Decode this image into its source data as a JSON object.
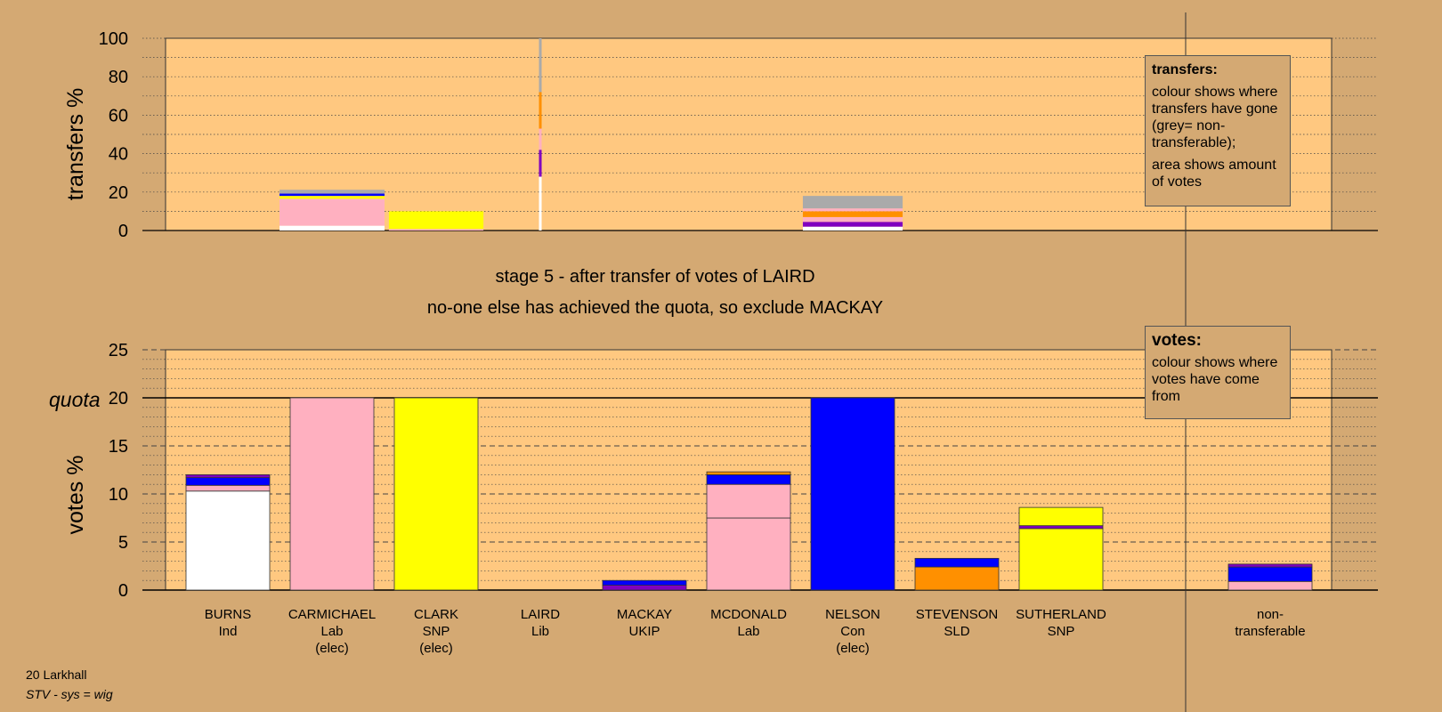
{
  "footer": {
    "ward": "20 Larkhall",
    "system": "STV - sys = wig"
  },
  "stage": {
    "line1": "stage 5 - after transfer of votes of LAIRD",
    "line2": "no-one else has achieved the quota, so exclude MACKAY"
  },
  "legends": {
    "transfers": {
      "title": "transfers:",
      "p1": "colour shows where transfers have gone (grey= non-transferable);",
      "p2": "area shows amount of votes"
    },
    "votes": {
      "title": "votes:",
      "p1": "colour shows where votes have come from"
    }
  },
  "colors": {
    "background": "#d4a973",
    "plot_bg": "#ffc880",
    "Ind": "#ffffff",
    "Lab": "#ffb0c0",
    "SNP": "#ffff00",
    "Lib": "#ff9000",
    "UKIP": "#8000c0",
    "Con": "#0000ff",
    "SLD": "#ff9000",
    "nontransferable": "#aaaaaa"
  },
  "chart_data": [
    {
      "type": "bar",
      "stacked": true,
      "ylabel": "transfers %",
      "ylim": [
        0,
        100
      ],
      "yticks": [
        0,
        20,
        40,
        60,
        80,
        100
      ],
      "categories": [
        "BURNS",
        "CARMICHAEL",
        "CLARK",
        "LAIRD",
        "MACKAY",
        "MCDONALD",
        "NELSON",
        "STEVENSON",
        "SUTHERLAND"
      ],
      "bars": [
        {
          "category": "CARMICHAEL",
          "width_rel": 1.0,
          "segments": [
            {
              "party": "Ind",
              "value": 2.5
            },
            {
              "party": "Lab",
              "value": 14
            },
            {
              "party": "SNP",
              "value": 1.5
            },
            {
              "party": "Con",
              "value": 1.2
            },
            {
              "party": "nontransferable",
              "value": 2
            }
          ]
        },
        {
          "category": "CLARK",
          "width_rel": 0.9,
          "segments": [
            {
              "party": "Lab",
              "value": 0.8
            },
            {
              "party": "SNP",
              "value": 9.2
            }
          ]
        },
        {
          "category": "LAIRD",
          "width_rel": 0.02,
          "segments": [
            {
              "party": "Ind",
              "value": 28
            },
            {
              "party": "UKIP",
              "value": 14
            },
            {
              "party": "Lab",
              "value": 11
            },
            {
              "party": "SLD",
              "value": 19
            },
            {
              "party": "nontransferable",
              "value": 28
            }
          ]
        },
        {
          "category": "NELSON",
          "width_rel": 0.95,
          "segments": [
            {
              "party": "Ind",
              "value": 2
            },
            {
              "party": "UKIP",
              "value": 2.5
            },
            {
              "party": "Lab",
              "value": 2.5
            },
            {
              "party": "SLD",
              "value": 3
            },
            {
              "party": "Lab",
              "value": 1.5
            },
            {
              "party": "nontransferable",
              "value": 6.5
            }
          ]
        }
      ]
    },
    {
      "type": "bar",
      "stacked": true,
      "ylabel": "votes %",
      "ylim": [
        0,
        25
      ],
      "yticks": [
        0,
        5,
        10,
        15,
        20,
        25
      ],
      "quota": 20,
      "quota_label": "quota",
      "candidates": [
        {
          "name": "BURNS",
          "party": "Ind",
          "note": "",
          "segments": [
            {
              "party": "Ind",
              "value": 10.3
            },
            {
              "party": "Lab",
              "value": 0.6
            },
            {
              "party": "Con",
              "value": 0.8
            },
            {
              "party": "UKIP",
              "value": 0.3
            }
          ]
        },
        {
          "name": "CARMICHAEL",
          "party": "Lab",
          "note": "(elec)",
          "segments": [
            {
              "party": "Lab",
              "value": 20
            }
          ]
        },
        {
          "name": "CLARK",
          "party": "SNP",
          "note": "(elec)",
          "segments": [
            {
              "party": "SNP",
              "value": 20
            }
          ]
        },
        {
          "name": "LAIRD",
          "party": "Lib",
          "note": "",
          "segments": []
        },
        {
          "name": "MACKAY",
          "party": "UKIP",
          "note": "",
          "segments": [
            {
              "party": "UKIP",
              "value": 0.5
            },
            {
              "party": "Con",
              "value": 0.5
            }
          ]
        },
        {
          "name": "MCDONALD",
          "party": "Lab",
          "note": "",
          "segments": [
            {
              "party": "Lab",
              "value": 7.5
            },
            {
              "party": "Lab",
              "value": 3.5
            },
            {
              "party": "Con",
              "value": 1.0
            },
            {
              "party": "SLD",
              "value": 0.3
            }
          ]
        },
        {
          "name": "NELSON",
          "party": "Con",
          "note": "(elec)",
          "segments": [
            {
              "party": "Con",
              "value": 20
            }
          ]
        },
        {
          "name": "STEVENSON",
          "party": "SLD",
          "note": "",
          "segments": [
            {
              "party": "SLD",
              "value": 2.4
            },
            {
              "party": "Con",
              "value": 0.9
            }
          ]
        },
        {
          "name": "SUTHERLAND",
          "party": "SNP",
          "note": "",
          "segments": [
            {
              "party": "SNP",
              "value": 6.4
            },
            {
              "party": "UKIP",
              "value": 0.3
            },
            {
              "party": "SNP",
              "value": 1.9
            }
          ]
        }
      ],
      "nontransferable": {
        "label_line1": "non-",
        "label_line2": "transferable",
        "segments": [
          {
            "party": "Lab",
            "value": 0.9
          },
          {
            "party": "Con",
            "value": 1.5
          },
          {
            "party": "UKIP",
            "value": 0.3
          }
        ]
      }
    }
  ]
}
